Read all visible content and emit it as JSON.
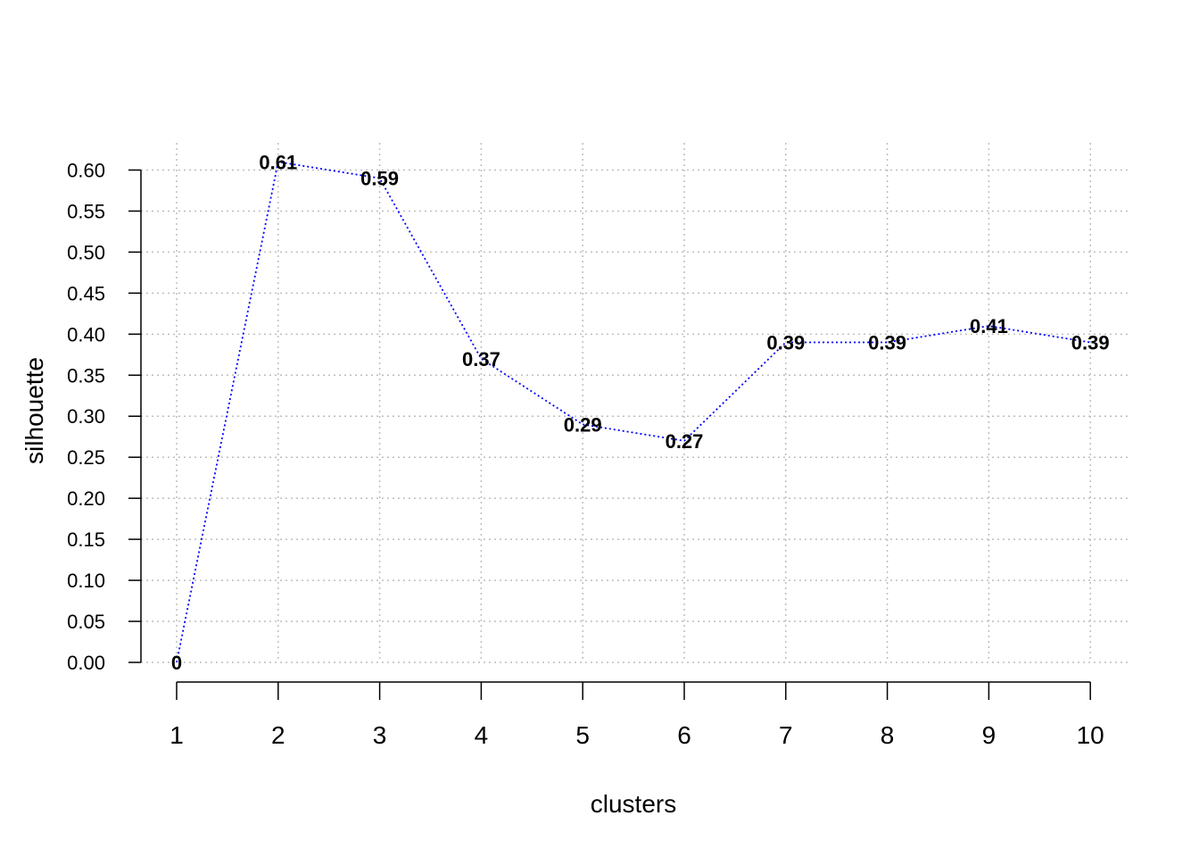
{
  "chart_data": {
    "type": "line",
    "title": "",
    "xlabel": "clusters",
    "ylabel": "silhouette",
    "x": [
      1,
      2,
      3,
      4,
      5,
      6,
      7,
      8,
      9,
      10
    ],
    "series": [
      {
        "values": [
          0,
          0.61,
          0.59,
          0.37,
          0.29,
          0.27,
          0.39,
          0.39,
          0.41,
          0.39
        ],
        "labels": [
          "0",
          "0.61",
          "0.59",
          "0.37",
          "0.29",
          "0.27",
          "0.39",
          "0.39",
          "0.41",
          "0.39"
        ],
        "color": "#0000ff",
        "line_style": "dotted"
      }
    ],
    "xlim": [
      1,
      10
    ],
    "ylim": [
      0,
      0.6
    ],
    "xticks": [
      "1",
      "2",
      "3",
      "4",
      "5",
      "6",
      "7",
      "8",
      "9",
      "10"
    ],
    "yticks": [
      "0.00",
      "0.05",
      "0.10",
      "0.15",
      "0.20",
      "0.25",
      "0.30",
      "0.35",
      "0.40",
      "0.45",
      "0.50",
      "0.55",
      "0.60"
    ],
    "ytick_values": [
      0,
      0.05,
      0.1,
      0.15,
      0.2,
      0.25,
      0.3,
      0.35,
      0.4,
      0.45,
      0.5,
      0.55,
      0.6
    ],
    "grid": true,
    "grid_color": "#bebebe",
    "legend": "none"
  }
}
